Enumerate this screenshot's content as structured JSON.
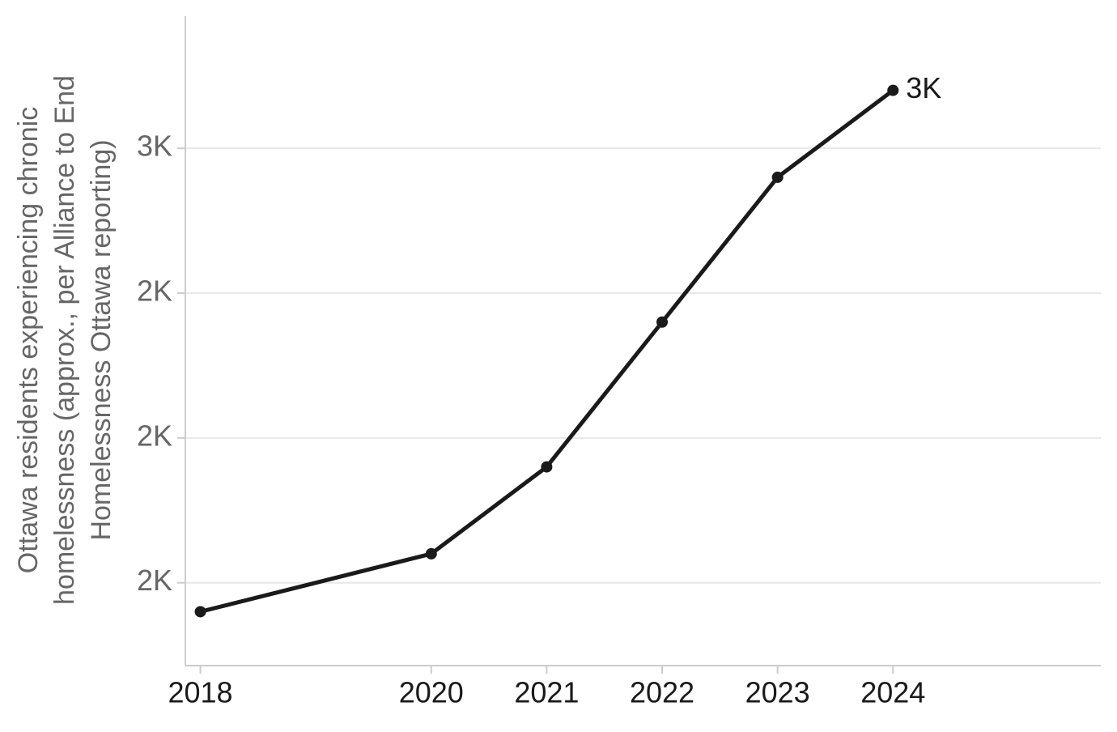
{
  "chart_data": {
    "type": "line",
    "ylabel": [
      "Ottawa residents experiencing chronic",
      "homelessness (approx., per Alliance to End",
      "Homelessness Ottawa reporting)"
    ],
    "x": [
      2018,
      2020,
      2021,
      2022,
      2023,
      2024
    ],
    "series": [
      {
        "name": "Chronic homelessness",
        "color": "#1a1a1a",
        "values": [
          1700,
          1800,
          1950,
          2200,
          2450,
          2600
        ],
        "value_labels": [
          null,
          null,
          null,
          null,
          null,
          "3K"
        ]
      }
    ],
    "xlim": [
      2017.87,
      2025.8
    ],
    "xticks": [
      2018,
      2020,
      2021,
      2022,
      2023,
      2024
    ],
    "ylim": [
      1607,
      2728
    ],
    "yticks": [
      {
        "value": 1750,
        "label": "2K"
      },
      {
        "value": 2000,
        "label": "2K"
      },
      {
        "value": 2250,
        "label": "2K"
      },
      {
        "value": 2500,
        "label": "3K"
      }
    ],
    "grid": true
  }
}
